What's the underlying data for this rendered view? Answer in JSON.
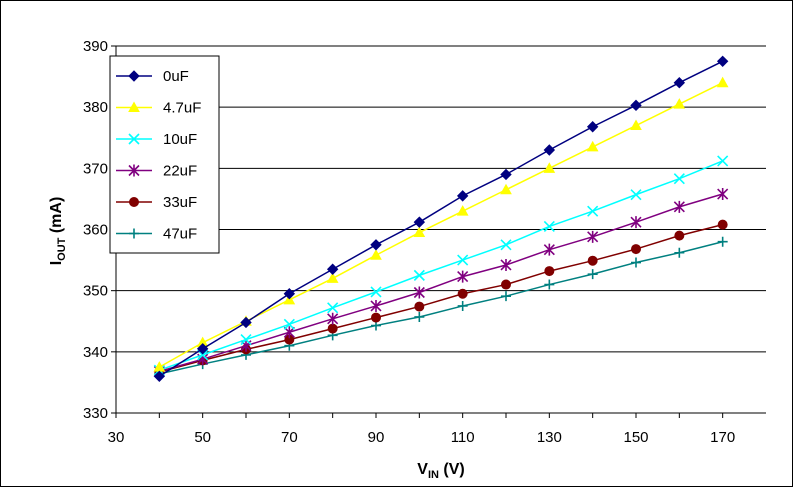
{
  "chart_data": {
    "type": "line",
    "xlabel": {
      "main": "V",
      "sub": "IN",
      "unit": " (V)"
    },
    "ylabel": {
      "main": "I",
      "sub": "OUT",
      "unit": " (mA)"
    },
    "xlim": [
      30,
      180
    ],
    "ylim": [
      330,
      390
    ],
    "xticks": [
      30,
      50,
      70,
      90,
      110,
      130,
      150,
      170
    ],
    "yticks": [
      330,
      340,
      350,
      360,
      370,
      380,
      390
    ],
    "grid": "horizontal",
    "legend_position": "top-left",
    "x": [
      40,
      50,
      60,
      70,
      80,
      90,
      100,
      110,
      120,
      130,
      140,
      150,
      160,
      170
    ],
    "series": [
      {
        "name": "0uF",
        "color": "#000080",
        "marker": "diamond",
        "values": [
          336.0,
          340.5,
          344.8,
          349.5,
          353.5,
          357.5,
          361.2,
          365.5,
          369.0,
          373.0,
          376.8,
          380.3,
          384.0,
          387.5
        ]
      },
      {
        "name": "4.7uF",
        "color": "#FFFF00",
        "marker": "triangle",
        "values": [
          337.5,
          341.5,
          345.0,
          348.5,
          352.0,
          355.8,
          359.5,
          363.0,
          366.5,
          370.0,
          373.5,
          377.0,
          380.5,
          384.0
        ]
      },
      {
        "name": "10uF",
        "color": "#00FFFF",
        "marker": "x",
        "values": [
          337.0,
          339.5,
          342.0,
          344.5,
          347.2,
          349.8,
          352.5,
          355.0,
          357.5,
          360.5,
          363.0,
          365.7,
          368.3,
          371.2
        ]
      },
      {
        "name": "22uF",
        "color": "#800080",
        "marker": "star",
        "values": [
          336.8,
          338.8,
          341.0,
          343.2,
          345.4,
          347.5,
          349.7,
          352.3,
          354.2,
          356.7,
          358.8,
          361.2,
          363.7,
          365.8
        ]
      },
      {
        "name": "33uF",
        "color": "#800000",
        "marker": "circle",
        "values": [
          336.7,
          338.6,
          340.4,
          342.0,
          343.8,
          345.6,
          347.4,
          349.5,
          351.0,
          353.2,
          354.9,
          356.8,
          359.0,
          360.8
        ]
      },
      {
        "name": "47uF",
        "color": "#008080",
        "marker": "plus",
        "values": [
          336.4,
          338.0,
          339.5,
          341.0,
          342.7,
          344.3,
          345.7,
          347.5,
          349.1,
          351.0,
          352.7,
          354.6,
          356.2,
          358.0
        ]
      }
    ]
  }
}
